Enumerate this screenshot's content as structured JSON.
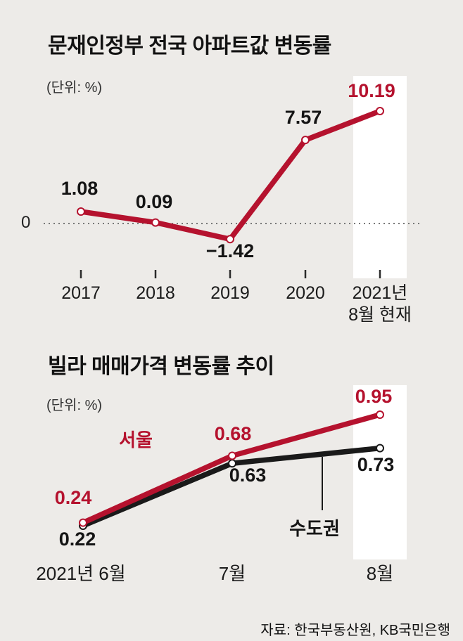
{
  "colors": {
    "red": "#b5122e",
    "black": "#1a1a1a",
    "background": "#edebe8",
    "highlight_band": "#ffffff"
  },
  "source": "자료: 한국부동산원, KB국민은행",
  "chart_data": [
    {
      "type": "line",
      "title": "문재인정부 전국 아파트값 변동률",
      "unit_label": "(단위: %)",
      "categories": [
        "2017",
        "2018",
        "2019",
        "2020",
        "2021년 8월 현재"
      ],
      "x_tick_display": [
        "2017",
        "2018",
        "2019",
        "2020",
        "2021년\n8월 현재"
      ],
      "series": [
        {
          "name": "전국 아파트값 변동률",
          "color": "#b5122e",
          "values": [
            1.08,
            0.09,
            -1.42,
            7.57,
            10.19
          ],
          "value_labels": [
            "1.08",
            "0.09",
            "−1.42",
            "7.57",
            "10.19"
          ]
        }
      ],
      "zero_line": true,
      "zero_label": "0",
      "ylim": [
        -3,
        12
      ],
      "grid": false,
      "highlight_last_column": true
    },
    {
      "type": "line",
      "title": "빌라 매매가격 변동률 추이",
      "unit_label": "(단위: %)",
      "categories": [
        "2021년 6월",
        "7월",
        "8월"
      ],
      "series": [
        {
          "name": "수도권",
          "color": "#1a1a1a",
          "values": [
            0.22,
            0.63,
            0.73
          ],
          "value_labels": [
            "0.22",
            "0.63",
            "0.73"
          ]
        },
        {
          "name": "서울",
          "color": "#b5122e",
          "values": [
            0.24,
            0.68,
            0.95
          ],
          "value_labels": [
            "0.24",
            "0.68",
            "0.95"
          ]
        }
      ],
      "ylim": [
        0.1,
        1.05
      ],
      "grid": false,
      "highlight_last_column": true
    }
  ]
}
